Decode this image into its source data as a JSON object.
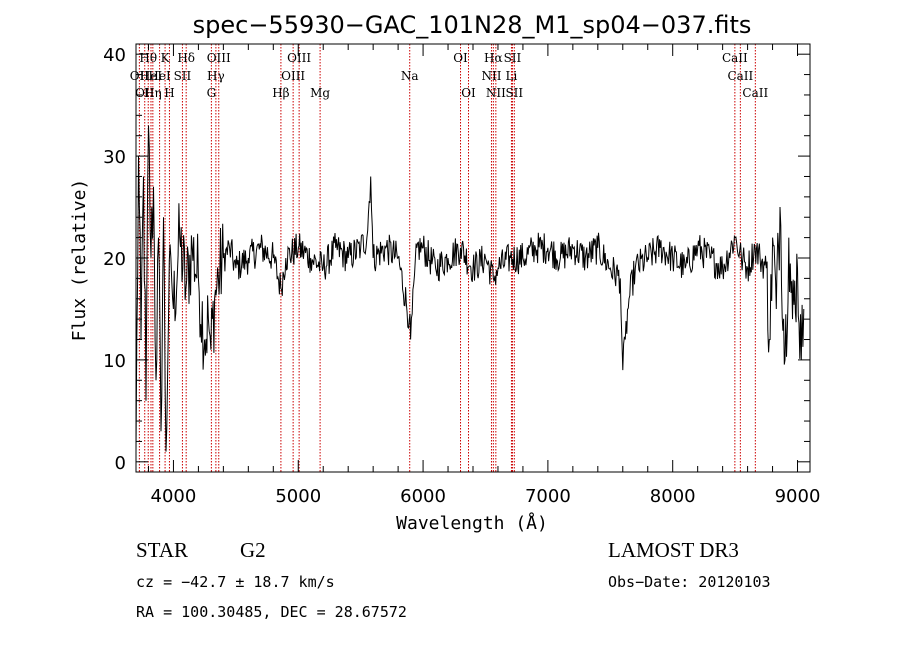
{
  "chart_data": {
    "type": "line",
    "title": "spec−55930−GAC_101N28_M1_sp04−037.fits",
    "xlabel": "Wavelength (Å)",
    "ylabel": "Flux (relative)",
    "xlim": [
      3700,
      9100
    ],
    "ylim": [
      -1,
      41
    ],
    "xticks": [
      4000,
      5000,
      6000,
      7000,
      8000,
      9000
    ],
    "xtick_labels": [
      "4000",
      "5000",
      "6000",
      "7000",
      "8000",
      "9000"
    ],
    "yticks": [
      0,
      10,
      20,
      30,
      40
    ],
    "ytick_labels": [
      "0",
      "10",
      "20",
      "30",
      "40"
    ],
    "line_color": "#000000",
    "marker_color": "#cc0000",
    "series": [
      {
        "name": "flux",
        "x": [
          3700,
          3720,
          3740,
          3760,
          3780,
          3800,
          3820,
          3840,
          3860,
          3880,
          3900,
          3920,
          3940,
          3960,
          3980,
          4000,
          4050,
          4100,
          4150,
          4200,
          4250,
          4280,
          4300,
          4330,
          4360,
          4400,
          4450,
          4500,
          4600,
          4700,
          4800,
          4861,
          4900,
          5000,
          5100,
          5200,
          5300,
          5400,
          5500,
          5550,
          5580,
          5600,
          5700,
          5800,
          5890,
          5900,
          5950,
          6000,
          6100,
          6200,
          6300,
          6400,
          6500,
          6563,
          6600,
          6700,
          6800,
          6900,
          7000,
          7100,
          7200,
          7300,
          7400,
          7500,
          7580,
          7600,
          7620,
          7650,
          7700,
          7800,
          7900,
          8000,
          8100,
          8200,
          8300,
          8400,
          8500,
          8550,
          8600,
          8660,
          8700,
          8750,
          8780,
          8800,
          8830,
          8860,
          8900,
          8930,
          8960,
          9000,
          9030,
          9050
        ],
        "values": [
          1,
          30,
          12,
          28,
          6,
          33,
          20,
          27,
          8,
          22,
          3,
          24,
          1,
          14,
          20,
          15,
          22,
          17,
          21,
          18,
          12,
          14,
          11,
          16,
          18,
          20,
          21,
          19,
          20,
          21,
          20,
          17,
          20,
          21,
          20,
          19,
          21,
          20,
          21,
          22,
          28,
          20,
          21,
          20,
          14,
          12,
          21,
          21,
          19,
          20,
          21,
          19,
          20,
          18,
          19,
          20,
          20,
          21,
          21,
          20,
          21,
          20,
          21,
          19,
          18,
          9,
          12,
          16,
          19,
          20,
          21,
          20,
          19,
          21,
          20,
          19,
          22,
          20,
          19,
          21,
          20,
          19,
          12,
          22,
          15,
          25,
          10,
          22,
          14,
          19,
          10,
          15
        ]
      }
    ],
    "spectral_lines": [
      {
        "wl": 3727,
        "label": "OII",
        "row": 2
      },
      {
        "wl": 3770,
        "label": "OII",
        "row": 3
      },
      {
        "wl": 3798,
        "label": "Hθ",
        "row": 1
      },
      {
        "wl": 3820,
        "label": "HeI",
        "row": 2
      },
      {
        "wl": 3835,
        "label": "Hη",
        "row": 3
      },
      {
        "wl": 3889,
        "label": "HeI",
        "row": 2
      },
      {
        "wl": 3933,
        "label": "K",
        "row": 1
      },
      {
        "wl": 3968,
        "label": "H",
        "row": 3
      },
      {
        "wl": 4072,
        "label": "SII",
        "row": 2
      },
      {
        "wl": 4102,
        "label": "Hδ",
        "row": 1
      },
      {
        "wl": 4304,
        "label": "G",
        "row": 3
      },
      {
        "wl": 4340,
        "label": "Hγ",
        "row": 2
      },
      {
        "wl": 4363,
        "label": "OIII",
        "row": 1
      },
      {
        "wl": 4861,
        "label": "Hβ",
        "row": 3
      },
      {
        "wl": 4959,
        "label": "OIII",
        "row": 2
      },
      {
        "wl": 5007,
        "label": "OIII",
        "row": 1
      },
      {
        "wl": 5175,
        "label": "Mg",
        "row": 3
      },
      {
        "wl": 5893,
        "label": "Na",
        "row": 2
      },
      {
        "wl": 6300,
        "label": "OI",
        "row": 1
      },
      {
        "wl": 6364,
        "label": "OI",
        "row": 3
      },
      {
        "wl": 6548,
        "label": "NII",
        "row": 2
      },
      {
        "wl": 6563,
        "label": "Hα",
        "row": 1
      },
      {
        "wl": 6583,
        "label": "NII",
        "row": 3
      },
      {
        "wl": 6708,
        "label": "Li",
        "row": 2
      },
      {
        "wl": 6716,
        "label": "SII",
        "row": 1
      },
      {
        "wl": 6731,
        "label": "SII",
        "row": 3
      },
      {
        "wl": 8498,
        "label": "CaII",
        "row": 1
      },
      {
        "wl": 8542,
        "label": "CaII",
        "row": 2
      },
      {
        "wl": 8662,
        "label": "CaII",
        "row": 3
      }
    ]
  },
  "info": {
    "object_class": "STAR",
    "subclass": "G2",
    "redshift_text": "cz = −42.7 ± 18.7 km/s",
    "coords_text": "RA = 100.30485, DEC =  28.67572",
    "survey": "LAMOST DR3",
    "obs_date": "Obs−Date: 20120103"
  }
}
